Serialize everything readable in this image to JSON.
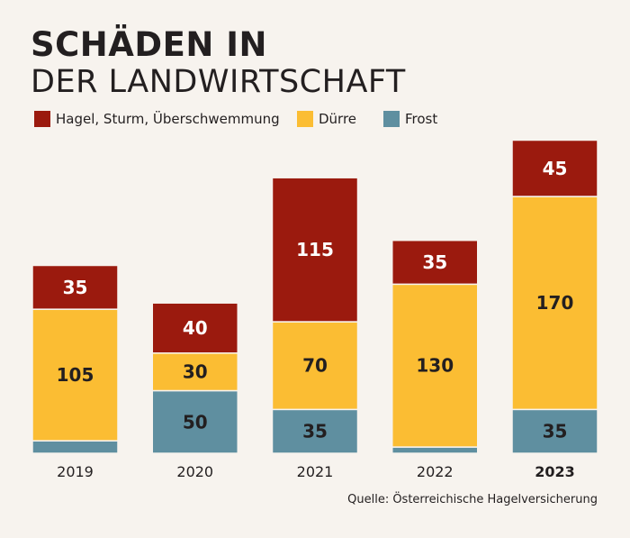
{
  "title_line1": "SCHÄDEN IN",
  "title_line2": "DER LANDWIRTSCHAFT",
  "source": "Quelle: Österreichische Hagelversicherung",
  "colors": {
    "hagel": "#9b1a0e",
    "duerre": "#fbbd33",
    "frost": "#5f8fa0",
    "background": "#f7f3ee"
  },
  "chart_data": {
    "type": "bar",
    "stacked": true,
    "categories": [
      "2019",
      "2020",
      "2021",
      "2022",
      "2023"
    ],
    "highlight_category": "2023",
    "series": [
      {
        "name": "Frost",
        "color": "#5f8fa0",
        "values": [
          10,
          50,
          35,
          5,
          35
        ]
      },
      {
        "name": "Dürre",
        "color": "#fbbd33",
        "values": [
          105,
          30,
          70,
          130,
          170
        ]
      },
      {
        "name": "Hagel, Sturm, Überschwemmung",
        "color": "#9b1a0e",
        "values": [
          35,
          40,
          115,
          35,
          45
        ]
      }
    ],
    "legend_order": [
      "Hagel, Sturm, Überschwemmung",
      "Dürre",
      "Frost"
    ],
    "legend_position": "top-left",
    "grid": false
  }
}
